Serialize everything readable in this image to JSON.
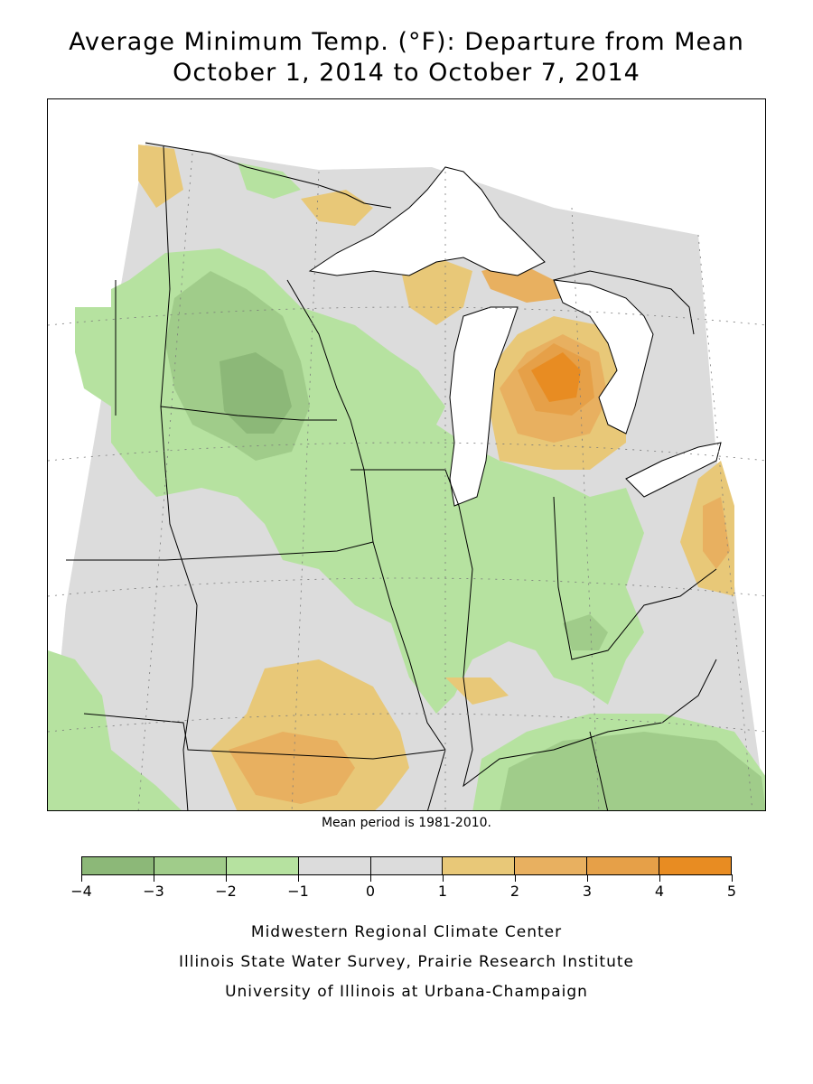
{
  "header": {
    "title_line1": "Average Minimum Temp. (°F): Departure from Mean",
    "title_line2": "October 1, 2014 to October 7, 2014"
  },
  "map": {
    "region": "Midwest United States",
    "fill_categories": [
      "-2 to -1",
      "-3 to -2",
      "-4 to -3",
      "-1 to 1",
      "1 to 2",
      "2 to 3",
      "3 to 4",
      "4 to 5"
    ]
  },
  "note": "Mean period is 1981-2010.",
  "legend": {
    "tick_labels": [
      "-4",
      "-3",
      "-2",
      "-1",
      "0",
      "1",
      "2",
      "3",
      "4",
      "5"
    ],
    "colors": [
      "#8cb878",
      "#a0cc8a",
      "#b6e2a0",
      "#dcdcdc",
      "#dcdcdc",
      "#e8c878",
      "#e8b060",
      "#e6a048",
      "#e88c22"
    ]
  },
  "credits": {
    "line1": "Midwestern Regional Climate Center",
    "line2": "Illinois State Water Survey, Prairie Research Institute",
    "line3": "University of Illinois at Urbana-Champaign"
  }
}
